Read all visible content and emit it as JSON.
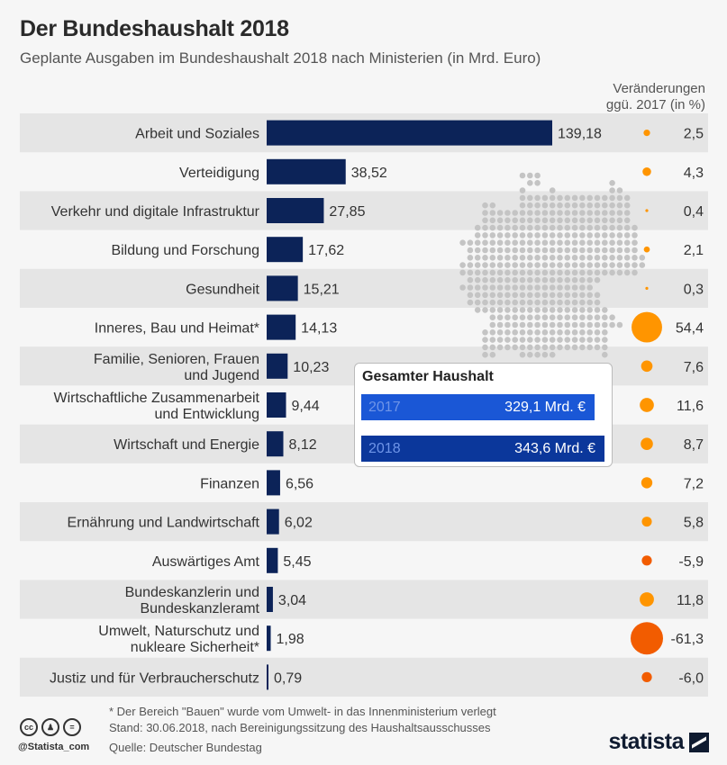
{
  "header": {
    "title": "Der Bundeshaushalt 2018",
    "subtitle": "Geplante Ausgaben im Bundeshaushalt 2018 nach Ministerien (in Mrd. Euro)",
    "change_header_line1": "Veränderungen",
    "change_header_line2": "ggü. 2017 (in %)"
  },
  "colors": {
    "bar": "#0c2358",
    "stripe": "#e5e5e5",
    "positive_dot": "#ff9500",
    "negative_dot": "#f25c00",
    "map_dot": "#c4c4c4",
    "box_2017": "#1a57d6",
    "box_2018": "#0b379b"
  },
  "chart_data": {
    "type": "bar",
    "orientation": "horizontal",
    "title": "Der Bundeshaushalt 2018",
    "subtitle": "Geplante Ausgaben im Bundeshaushalt 2018 nach Ministerien (in Mrd. Euro)",
    "xlabel": "Mrd. Euro",
    "categories": [
      [
        "Arbeit und Soziales"
      ],
      [
        "Verteidigung"
      ],
      [
        "Verkehr und digitale Infrastruktur"
      ],
      [
        "Bildung und Forschung"
      ],
      [
        "Gesundheit"
      ],
      [
        "Inneres, Bau und Heimat*"
      ],
      [
        "Familie, Senioren, Frauen",
        "und Jugend"
      ],
      [
        "Wirtschaftliche Zusammenarbeit",
        "und Entwicklung"
      ],
      [
        "Wirtschaft und Energie"
      ],
      [
        "Finanzen"
      ],
      [
        "Ernährung und Landwirtschaft"
      ],
      [
        "Auswärtiges Amt"
      ],
      [
        "Bundeskanzlerin und",
        "Bundeskanzleramt"
      ],
      [
        "Umwelt, Naturschutz und",
        "nukleare Sicherheit*"
      ],
      [
        "Justiz und für Verbraucherschutz"
      ]
    ],
    "values": [
      139.18,
      38.52,
      27.85,
      17.62,
      15.21,
      14.13,
      10.23,
      9.44,
      8.12,
      6.56,
      6.02,
      5.45,
      3.04,
      1.98,
      0.79
    ],
    "value_labels": [
      "139,18",
      "38,52",
      "27,85",
      "17,62",
      "15,21",
      "14,13",
      "10,23",
      "9,44",
      "8,12",
      "6,56",
      "6,02",
      "5,45",
      "3,04",
      "1,98",
      "0,79"
    ],
    "change_series": {
      "name": "Veränderungen ggü. 2017 (in %)",
      "values": [
        2.5,
        4.3,
        0.4,
        2.1,
        0.3,
        54.4,
        7.6,
        11.6,
        8.7,
        7.2,
        5.8,
        -5.9,
        11.8,
        -61.3,
        -6.0
      ],
      "labels": [
        "2,5",
        "4,3",
        "0,4",
        "2,1",
        "0,3",
        "54,4",
        "7,6",
        "11,6",
        "8,7",
        "7,2",
        "5,8",
        "-5,9",
        "11,8",
        "-61,3",
        "-6,0"
      ]
    },
    "xlim": [
      0,
      140
    ],
    "grid": false,
    "legend": "none"
  },
  "total_box": {
    "title": "Gesamter Haushalt",
    "rows": [
      {
        "year": "2017",
        "amount": "329,1 Mrd. €",
        "value": 329.1
      },
      {
        "year": "2018",
        "amount": "343,6 Mrd. €",
        "value": 343.6
      }
    ]
  },
  "footer": {
    "note": "* Der Bereich \"Bauen\" wurde vom Umwelt- in das Innenministerium verlegt",
    "stand": "Stand: 30.06.2018, nach Bereinigungssitzung des Haushaltsausschusses",
    "source": "Quelle: Deutscher Bundestag",
    "handle": "@Statista_com",
    "brand": "statista",
    "license_icons": [
      "cc-icon",
      "by-icon",
      "nd-icon"
    ]
  }
}
